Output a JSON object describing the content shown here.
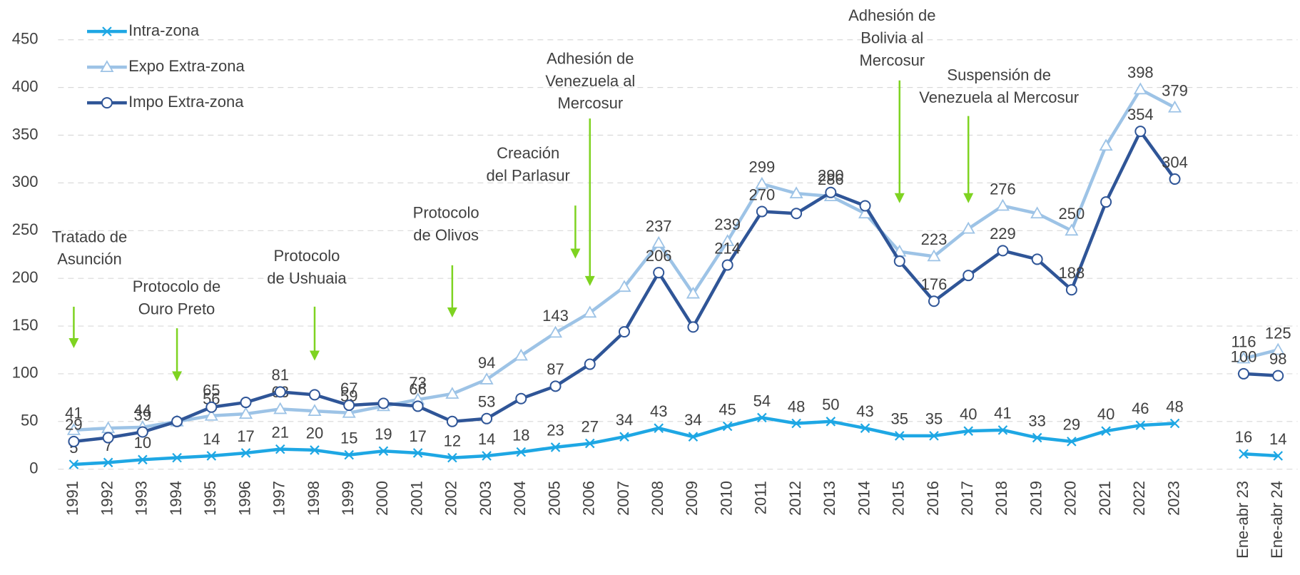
{
  "chart_data": {
    "type": "line",
    "categories": [
      "1991",
      "1992",
      "1993",
      "1994",
      "1995",
      "1996",
      "1997",
      "1998",
      "1999",
      "2000",
      "2001",
      "2002",
      "2003",
      "2004",
      "2005",
      "2006",
      "2007",
      "2008",
      "2009",
      "2010",
      "2011",
      "2012",
      "2013",
      "2014",
      "2015",
      "2016",
      "2017",
      "2018",
      "2019",
      "2020",
      "2021",
      "2022",
      "2023",
      null,
      "Ene-abr 23",
      "Ene-abr 24"
    ],
    "series": [
      {
        "name": "Intra-zona",
        "color": "#1ea7e4",
        "marker": "x",
        "values": [
          5,
          7,
          10,
          12,
          14,
          17,
          21,
          20,
          15,
          19,
          17,
          12,
          14,
          18,
          23,
          27,
          34,
          43,
          34,
          45,
          54,
          48,
          50,
          43,
          35,
          35,
          40,
          41,
          33,
          29,
          40,
          46,
          48,
          null,
          16,
          14
        ],
        "value_labels": [
          "5",
          "7",
          "10",
          null,
          "14",
          "17",
          "21",
          "20",
          "15",
          "19",
          "17",
          "12",
          "14",
          "18",
          "23",
          "27",
          "34",
          "43",
          "34",
          "45",
          "54",
          "48",
          "50",
          "43",
          "35",
          "35",
          "40",
          "41",
          "33",
          "29",
          "40",
          "46",
          "48",
          null,
          "16",
          "14"
        ]
      },
      {
        "name": "Expo Extra-zona",
        "color": "#9dc3e6",
        "marker": "triangle",
        "values": [
          41,
          43,
          44,
          50,
          56,
          58,
          63,
          61,
          59,
          66,
          73,
          79,
          94,
          119,
          143,
          164,
          191,
          237,
          184,
          239,
          299,
          289,
          286,
          268,
          228,
          223,
          252,
          276,
          268,
          250,
          339,
          398,
          379,
          null,
          116,
          125
        ],
        "value_labels": [
          "41",
          null,
          "44",
          null,
          "56",
          null,
          "63",
          null,
          "59",
          null,
          "73",
          null,
          "94",
          null,
          "143",
          null,
          null,
          "237",
          null,
          "239",
          "299",
          null,
          "286",
          null,
          null,
          "223",
          null,
          "276",
          null,
          "250",
          null,
          "398",
          "379",
          null,
          "116",
          "125"
        ]
      },
      {
        "name": "Impo Extra-zona",
        "color": "#2f5597",
        "marker": "circle",
        "values": [
          29,
          33,
          39,
          50,
          65,
          70,
          81,
          78,
          67,
          69,
          66,
          50,
          53,
          74,
          87,
          110,
          144,
          206,
          149,
          214,
          270,
          268,
          290,
          276,
          218,
          176,
          203,
          229,
          220,
          188,
          280,
          354,
          304,
          null,
          100,
          98
        ],
        "value_labels": [
          "29",
          null,
          "39",
          null,
          "65",
          null,
          "81",
          null,
          "67",
          null,
          "66",
          null,
          "53",
          null,
          "87",
          null,
          null,
          "206",
          null,
          "214",
          "270",
          null,
          "290",
          null,
          null,
          "176",
          null,
          "229",
          null,
          "188",
          null,
          "354",
          "304",
          null,
          "100",
          "98"
        ]
      }
    ],
    "ylim": [
      0,
      450
    ],
    "yticks": [
      0,
      50,
      100,
      150,
      200,
      250,
      300,
      350,
      400,
      450
    ],
    "grid": true,
    "legend": "top-left",
    "annotations": [
      {
        "lines": [
          "Tratado de",
          "Asunción"
        ],
        "category": "1991"
      },
      {
        "lines": [
          "Protocolo de",
          "Ouro Preto"
        ],
        "category": "1994"
      },
      {
        "lines": [
          "Protocolo",
          "de Ushuaia"
        ],
        "category": "1998"
      },
      {
        "lines": [
          "Protocolo",
          "de Olivos"
        ],
        "category": "2002"
      },
      {
        "lines": [
          "Creación",
          "del Parlasur"
        ],
        "category": "2005"
      },
      {
        "lines": [
          "Adhesión de",
          "Venezuela al",
          "Mercosur"
        ],
        "category": "2006"
      },
      {
        "lines": [
          "Adhesión de",
          "Bolivia al",
          "Mercosur"
        ],
        "category": "2015"
      },
      {
        "lines": [
          "Suspensión de",
          "Venezuela al Mercosur"
        ],
        "category": "2017"
      }
    ],
    "arrow_color": "#7ed321"
  }
}
